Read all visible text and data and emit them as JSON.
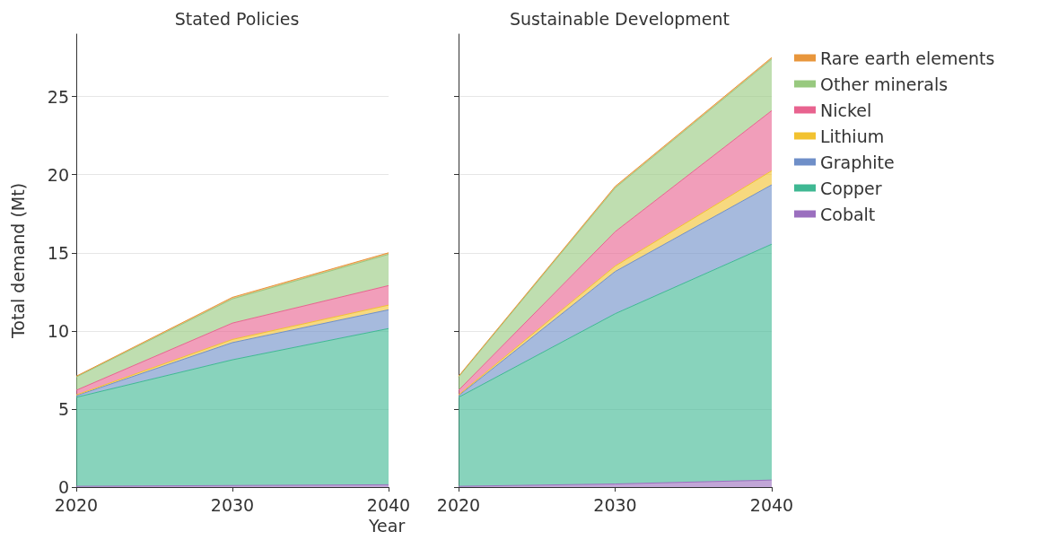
{
  "chart_data": [
    {
      "type": "area",
      "title": "Stated Policies",
      "ylabel": "Total demand (Mt)",
      "xlabel": "Year",
      "x": [
        2020,
        2030,
        2040
      ],
      "xlim": [
        2020,
        2040
      ],
      "xticks": [
        2020,
        2030,
        2040
      ],
      "ylim": [
        0,
        29
      ],
      "yticks": [
        0,
        5,
        10,
        15,
        20,
        25
      ],
      "stacked": true,
      "grid": "y",
      "series": [
        {
          "color": "#9b6fbf",
          "values": [
            0.05,
            0.1,
            0.15
          ]
        },
        {
          "color": "#3fb893",
          "values": [
            5.7,
            8.05,
            10.0
          ]
        },
        {
          "color": "#6f8fc8",
          "values": [
            0.1,
            1.1,
            1.2
          ]
        },
        {
          "color": "#f2c230",
          "values": [
            0.05,
            0.2,
            0.3
          ]
        },
        {
          "color": "#e8638f",
          "values": [
            0.3,
            1.05,
            1.25
          ]
        },
        {
          "color": "#98c97f",
          "values": [
            0.85,
            1.55,
            2.0
          ]
        },
        {
          "color": "#e8963c",
          "values": [
            0.05,
            0.1,
            0.1
          ]
        }
      ]
    },
    {
      "type": "area",
      "title": "Sustainable Development",
      "x": [
        2020,
        2030,
        2040
      ],
      "xlim": [
        2020,
        2040
      ],
      "xticks": [
        2020,
        2030,
        2040
      ],
      "ylim": [
        0,
        29
      ],
      "yticks": [
        0,
        5,
        10,
        15,
        20,
        25
      ],
      "stacked": true,
      "grid": "y",
      "legend": "right",
      "tick_labels": "x",
      "series": [
        {
          "name": "Cobalt",
          "color": "#9b6fbf",
          "values": [
            0.05,
            0.2,
            0.45
          ]
        },
        {
          "name": "Copper",
          "color": "#3fb893",
          "values": [
            5.7,
            10.9,
            15.1
          ]
        },
        {
          "name": "Graphite",
          "color": "#6f8fc8",
          "values": [
            0.1,
            2.7,
            3.8
          ]
        },
        {
          "name": "Lithium",
          "color": "#f2c230",
          "values": [
            0.05,
            0.35,
            0.9
          ]
        },
        {
          "name": "Nickel",
          "color": "#e8638f",
          "values": [
            0.3,
            2.2,
            3.85
          ]
        },
        {
          "name": "Other minerals",
          "color": "#98c97f",
          "values": [
            0.85,
            2.8,
            3.3
          ]
        },
        {
          "name": "Rare earth elements",
          "color": "#e8963c",
          "values": [
            0.05,
            0.1,
            0.1
          ]
        }
      ]
    }
  ]
}
